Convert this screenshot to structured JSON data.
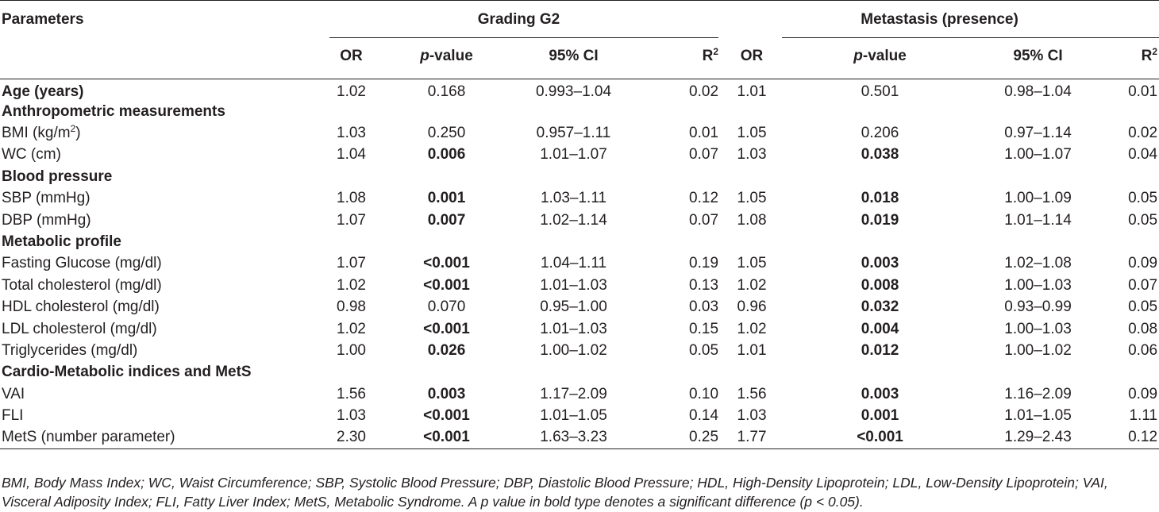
{
  "header": {
    "parameters": "Parameters",
    "group1": "Grading G2",
    "group2": "Metastasis (presence)",
    "or": "OR",
    "pvalue_p": "p",
    "pvalue_rest": "-value",
    "ci": "95% CI",
    "r2_r": "R",
    "r2_sup": "2"
  },
  "rows": [
    {
      "section": "Age (years)",
      "g2": [
        "1.02",
        "0.168",
        "0.993–1.04",
        "0.02"
      ],
      "met": [
        "1.01",
        "0.501",
        "0.98–1.04",
        "0.01"
      ]
    },
    {
      "section": "Anthropometric measurements"
    },
    {
      "label": "BMI (kg/m",
      "label_sup": "2",
      "label_tail": ")",
      "g2": [
        "1.03",
        "0.250",
        "0.957–1.11",
        "0.01"
      ],
      "met": [
        "1.05",
        "0.206",
        "0.97–1.14",
        "0.02"
      ]
    },
    {
      "label": "WC (cm)",
      "g2": [
        "1.04",
        "0.006",
        "1.01–1.07",
        "0.07"
      ],
      "met": [
        "1.03",
        "0.038",
        "1.00–1.07",
        "0.04"
      ]
    },
    {
      "section": "Blood pressure"
    },
    {
      "label": "SBP (mmHg)",
      "g2": [
        "1.08",
        "0.001",
        "1.03–1.11",
        "0.12"
      ],
      "met": [
        "1.05",
        "0.018",
        "1.00–1.09",
        "0.05"
      ]
    },
    {
      "label": "DBP (mmHg)",
      "g2": [
        "1.07",
        "0.007",
        "1.02–1.14",
        "0.07"
      ],
      "met": [
        "1.08",
        "0.019",
        "1.01–1.14",
        "0.05"
      ]
    },
    {
      "section": "Metabolic profile"
    },
    {
      "label": "Fasting Glucose (mg/dl)",
      "g2": [
        "1.07",
        "<0.001",
        "1.04–1.11",
        "0.19"
      ],
      "met": [
        "1.05",
        "0.003",
        "1.02–1.08",
        "0.09"
      ]
    },
    {
      "label": "Total cholesterol (mg/dl)",
      "g2": [
        "1.02",
        "<0.001",
        "1.01–1.03",
        "0.13"
      ],
      "met": [
        "1.02",
        "0.008",
        "1.00–1.03",
        "0.07"
      ]
    },
    {
      "label": "HDL cholesterol (mg/dl)",
      "g2": [
        "0.98",
        "0.070",
        "0.95–1.00",
        "0.03"
      ],
      "met": [
        "0.96",
        "0.032",
        "0.93–0.99",
        "0.05"
      ]
    },
    {
      "label": "LDL cholesterol (mg/dl)",
      "g2": [
        "1.02",
        "<0.001",
        "1.01–1.03",
        "0.15"
      ],
      "met": [
        "1.02",
        "0.004",
        "1.00–1.03",
        "0.08"
      ]
    },
    {
      "label": "Triglycerides (mg/dl)",
      "g2": [
        "1.00",
        "0.026",
        "1.00–1.02",
        "0.05"
      ],
      "met": [
        "1.01",
        "0.012",
        "1.00–1.02",
        "0.06"
      ]
    },
    {
      "section": "Cardio-Metabolic indices and MetS"
    },
    {
      "label": "VAI",
      "g2": [
        "1.56",
        "0.003",
        "1.17–2.09",
        "0.10"
      ],
      "met": [
        "1.56",
        "0.003",
        "1.16–2.09",
        "0.09"
      ]
    },
    {
      "label": "FLI",
      "g2": [
        "1.03",
        "<0.001",
        "1.01–1.05",
        "0.14"
      ],
      "met": [
        "1.03",
        "0.001",
        "1.01–1.05",
        "1.11"
      ]
    },
    {
      "label": "MetS (number parameter)",
      "g2": [
        "2.30",
        "<0.001",
        "1.63–3.23",
        "0.25"
      ],
      "met": [
        "1.77",
        "<0.001",
        "1.29–2.43",
        "0.12"
      ]
    }
  ],
  "footnote": "BMI, Body Mass Index; WC, Waist Circumference; SBP, Systolic Blood Pressure; DBP, Diastolic Blood Pressure; HDL, High-Density Lipoprotein; LDL, Low-Density Lipoprotein; VAI, Visceral Adiposity Index; FLI, Fatty Liver Index; MetS, Metabolic Syndrome. A p value in bold type denotes a significant difference (p < 0.05)."
}
